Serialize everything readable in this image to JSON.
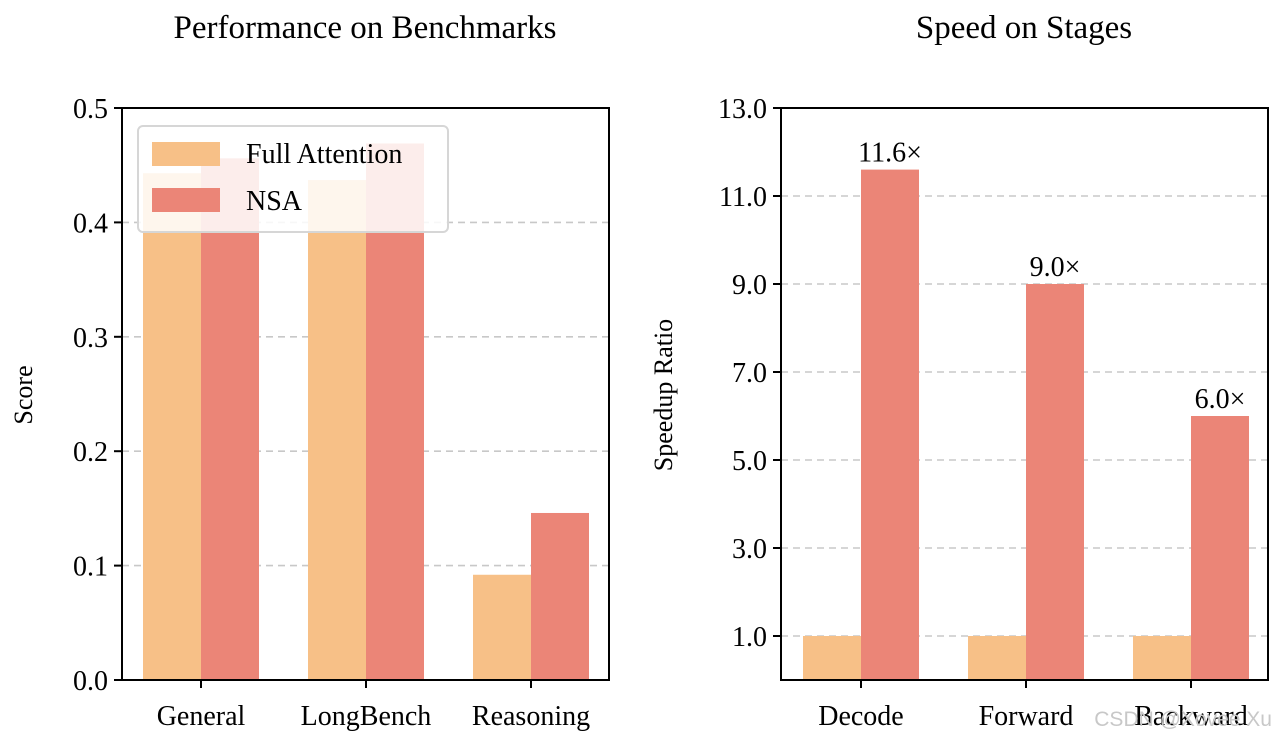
{
  "colors": {
    "full_attention": "#f7c087",
    "nsa": "#eb8577",
    "grid": "#c8c8c8"
  },
  "legend": {
    "full_attention": "Full Attention",
    "nsa": "NSA"
  },
  "watermark": "CSDN @Xovee Xu",
  "chart_data": [
    {
      "type": "bar",
      "title": "Performance on Benchmarks",
      "xlabel": "",
      "ylabel": "Score",
      "categories": [
        "General",
        "LongBench",
        "Reasoning"
      ],
      "series": [
        {
          "name": "Full Attention",
          "values": [
            0.443,
            0.437,
            0.092
          ]
        },
        {
          "name": "NSA",
          "values": [
            0.456,
            0.469,
            0.146
          ]
        }
      ],
      "ylim": [
        0.0,
        0.5
      ],
      "yticks": [
        0.0,
        0.1,
        0.2,
        0.3,
        0.4,
        0.5
      ],
      "ytick_labels": [
        "0.0",
        "0.1",
        "0.2",
        "0.3",
        "0.4",
        "0.5"
      ],
      "grid": "horizontal dashed",
      "legend_position": "top-left"
    },
    {
      "type": "bar",
      "title": "Speed on Stages",
      "xlabel": "",
      "ylabel": "Speedup Ratio",
      "categories": [
        "Decode",
        "Forward",
        "Backward"
      ],
      "series": [
        {
          "name": "Full Attention",
          "values": [
            1.0,
            1.0,
            1.0
          ]
        },
        {
          "name": "NSA",
          "values": [
            11.6,
            9.0,
            6.0
          ]
        }
      ],
      "data_labels": [
        "11.6×",
        "9.0×",
        "6.0×"
      ],
      "ylim": [
        0.0,
        13.0
      ],
      "yticks": [
        1.0,
        3.0,
        5.0,
        7.0,
        9.0,
        11.0,
        13.0
      ],
      "ytick_labels": [
        "1.0",
        "3.0",
        "5.0",
        "7.0",
        "9.0",
        "11.0",
        "13.0"
      ],
      "grid": "horizontal dashed"
    }
  ]
}
